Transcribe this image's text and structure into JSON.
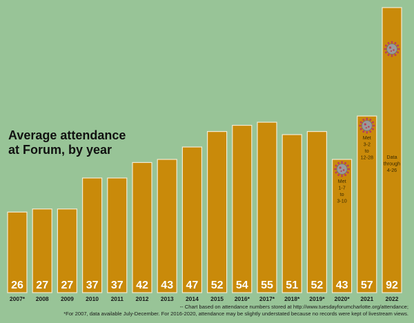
{
  "chart_data": {
    "type": "bar",
    "title_lines": [
      "Average attendance",
      "at Forum, by year"
    ],
    "categories": [
      "2007*",
      "2008",
      "2009",
      "2010",
      "2011",
      "2012",
      "2013",
      "2014",
      "2015",
      "2016*",
      "2017*",
      "2018*",
      "2019*",
      "2020*",
      "2021",
      "2022"
    ],
    "values": [
      26,
      27,
      27,
      37,
      37,
      42,
      43,
      47,
      52,
      54,
      55,
      51,
      52,
      43,
      57,
      92
    ],
    "ylim": [
      0,
      92
    ],
    "grid": false,
    "colors": {
      "bar": "#c98a0a",
      "bar_border": "#f4ead2",
      "background": "#98c497",
      "virus": "#b8405a"
    },
    "annotations": [
      {
        "category": "2020*",
        "icon": "virus-icon",
        "lines": [
          "Met",
          "1-7",
          "to",
          "3-10"
        ]
      },
      {
        "category": "2021",
        "icon": "virus-icon",
        "lines": [
          "Met",
          "3-2",
          "to",
          "12-28"
        ]
      },
      {
        "category": "2022",
        "icon": "virus-icon",
        "lines": [
          "Data",
          "through",
          "4-26"
        ]
      }
    ],
    "notes": [
      "-- Chart based on attendance numbers stored at http://www.tuesdayforumcharlotte.org/attendance;",
      "*For 2007, data available July-December. For 2016-2020, attendance may be slightly understated because no records were kept of livestream views."
    ]
  }
}
